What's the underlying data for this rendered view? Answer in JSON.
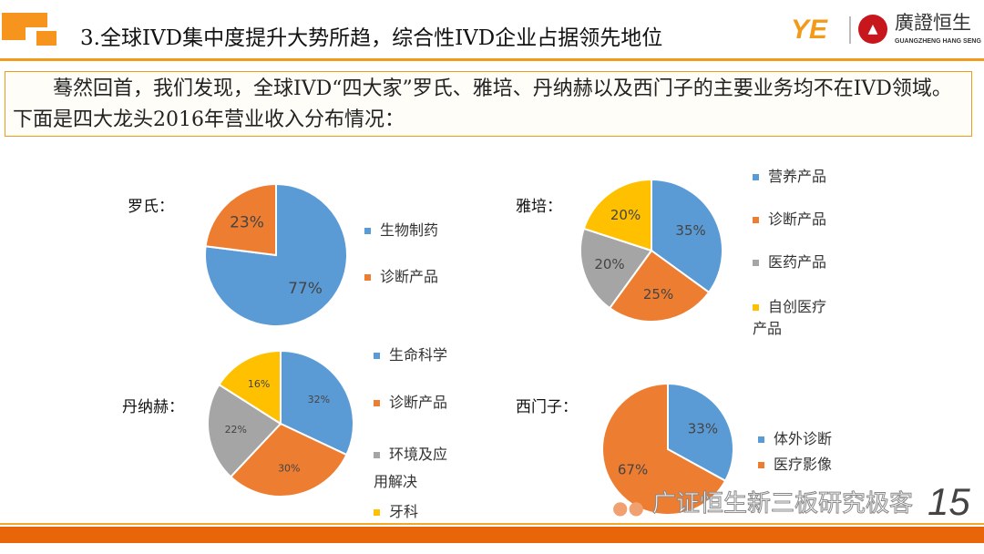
{
  "header": {
    "title": "3.全球IVD集中度提升大势所趋，综合性IVD企业占据领先地位",
    "brand_cn": "廣證恒生",
    "brand_en": "GUANGZHENG HANG SENG",
    "logo_mark": "YE"
  },
  "intro": "蓦然回首，我们发现，全球IVD“四大家”罗氏、雅培、丹纳赫以及西门子的主要业务均不在IVD领域。下面是四大龙头2016年营业收入分布情况：",
  "colors": {
    "blue": "#5b9bd5",
    "orange": "#ed7d31",
    "gray": "#a5a5a5",
    "yellow": "#ffc000"
  },
  "chart_data": [
    {
      "type": "pie",
      "title": "罗氏：",
      "categories": [
        "生物制药",
        "诊断产品"
      ],
      "values": [
        77,
        23
      ],
      "labels": [
        "77%",
        "23%"
      ],
      "colors": [
        "#5b9bd5",
        "#ed7d31"
      ]
    },
    {
      "type": "pie",
      "title": "雅培：",
      "categories": [
        "营养产品",
        "诊断产品",
        "医药产品",
        "自创医疗产品"
      ],
      "values": [
        35,
        25,
        20,
        20
      ],
      "labels": [
        "35%",
        "25%",
        "20%",
        "20%"
      ],
      "colors": [
        "#5b9bd5",
        "#ed7d31",
        "#a5a5a5",
        "#ffc000"
      ]
    },
    {
      "type": "pie",
      "title": "丹纳赫：",
      "categories": [
        "生命科学",
        "诊断产品",
        "环境及应用解决",
        "牙科"
      ],
      "values": [
        32,
        30,
        22,
        16
      ],
      "labels": [
        "32%",
        "30%",
        "22%",
        "16%"
      ],
      "colors": [
        "#5b9bd5",
        "#ed7d31",
        "#a5a5a5",
        "#ffc000"
      ]
    },
    {
      "type": "pie",
      "title": "西门子：",
      "categories": [
        "体外诊断",
        "医疗影像"
      ],
      "values": [
        33,
        67
      ],
      "labels": [
        "33%",
        "67%"
      ],
      "colors": [
        "#5b9bd5",
        "#ed7d31"
      ]
    }
  ],
  "footer": {
    "watermark": "广证恒生新三板研究极客",
    "page": "15"
  }
}
